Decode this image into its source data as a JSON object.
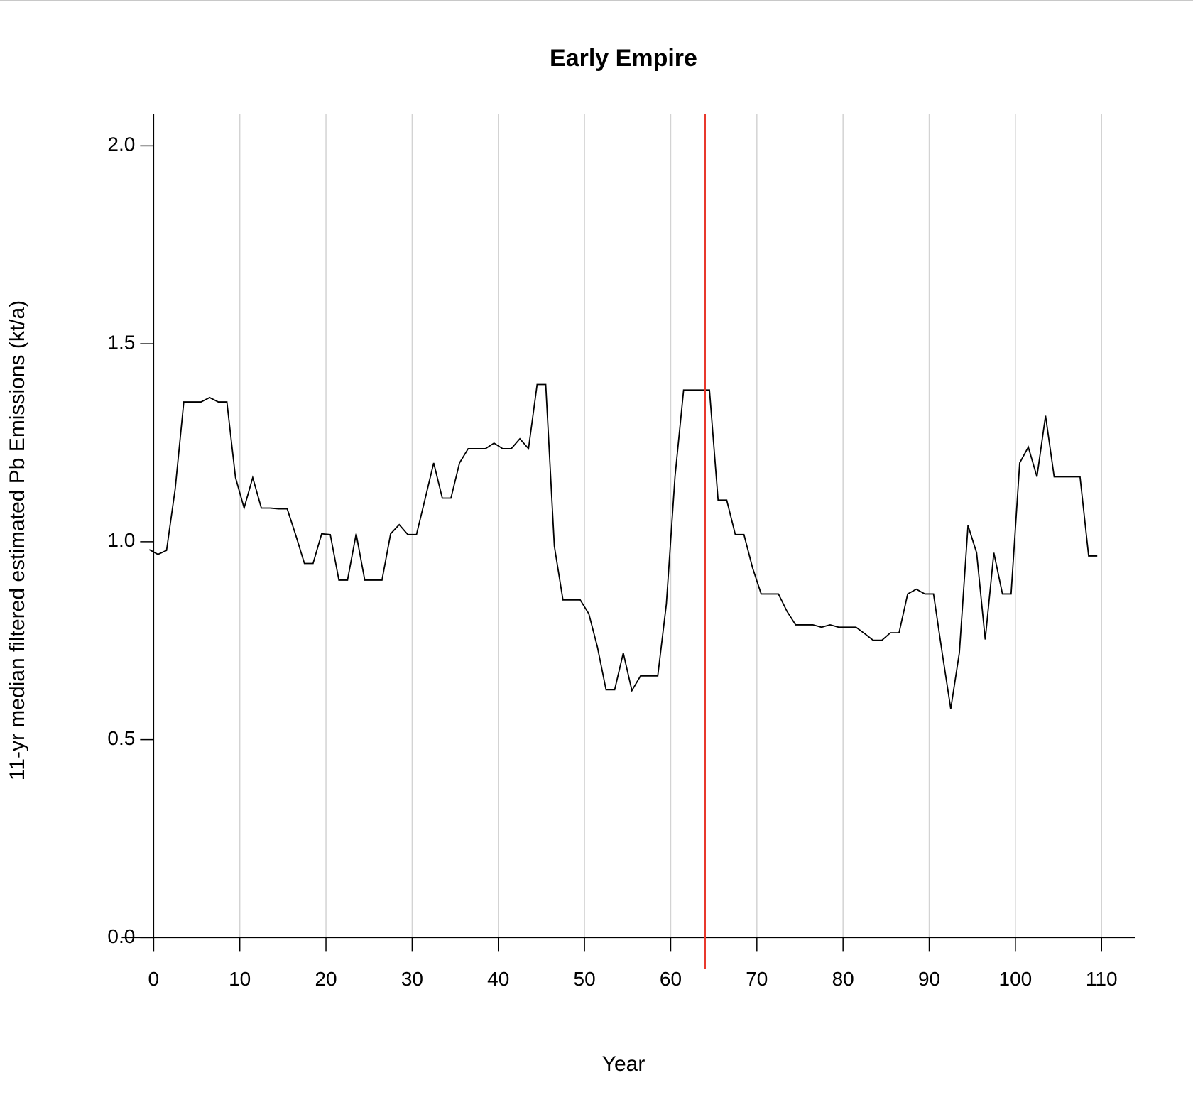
{
  "chart_data": {
    "type": "line",
    "title": "Early Empire",
    "x_label": "Year",
    "y_label": "11-yr median filtered estimated Pb Emissions (kt/a)",
    "x": [
      -0.5,
      0.5,
      1.5,
      2.5,
      3.5,
      4.5,
      5.5,
      6.5,
      7.5,
      8.5,
      9.5,
      10.5,
      11.5,
      12.5,
      13.5,
      14.5,
      15.5,
      16.5,
      17.5,
      18.5,
      19.5,
      20.5,
      21.5,
      22.5,
      23.5,
      24.5,
      25.5,
      26.5,
      27.5,
      28.5,
      29.5,
      30.5,
      31.5,
      32.5,
      33.5,
      34.5,
      35.5,
      36.5,
      37.5,
      38.5,
      39.5,
      40.5,
      41.5,
      42.5,
      43.5,
      44.5,
      45.5,
      46.5,
      47.5,
      48.5,
      49.5,
      50.5,
      51.5,
      52.5,
      53.5,
      54.5,
      55.5,
      56.5,
      57.5,
      58.5,
      59.5,
      60.5,
      61.5,
      62.5,
      63.5,
      64.5,
      65.5,
      66.5,
      67.5,
      68.5,
      69.5,
      70.5,
      71.5,
      72.5,
      73.5,
      74.5,
      75.5,
      76.5,
      77.5,
      78.5,
      79.5,
      80.5,
      81.5,
      82.5,
      83.5,
      84.5,
      85.5,
      86.5,
      87.5,
      88.5,
      89.5,
      90.5,
      91.5,
      92.5,
      93.5,
      94.5,
      95.5,
      96.5,
      97.5,
      98.5,
      99.5,
      100.5,
      101.5,
      102.5,
      103.5,
      104.5,
      105.5,
      106.5,
      107.5,
      108.5,
      109.5
    ],
    "series": [
      {
        "color": "#000000",
        "values": [
          0.98,
          0.968,
          0.978,
          1.133,
          1.353,
          1.353,
          1.353,
          1.364,
          1.353,
          1.353,
          1.162,
          1.085,
          1.162,
          1.085,
          1.085,
          1.083,
          1.083,
          1.016,
          0.945,
          0.945,
          1.02,
          1.018,
          0.903,
          0.903,
          1.02,
          0.903,
          0.903,
          0.903,
          1.02,
          1.043,
          1.018,
          1.018,
          1.108,
          1.199,
          1.11,
          1.11,
          1.199,
          1.235,
          1.235,
          1.235,
          1.249,
          1.235,
          1.235,
          1.26,
          1.235,
          1.397,
          1.397,
          0.989,
          0.853,
          0.853,
          0.853,
          0.818,
          0.734,
          0.626,
          0.626,
          0.719,
          0.624,
          0.661,
          0.661,
          0.661,
          0.843,
          1.164,
          1.383,
          1.383,
          1.383,
          1.383,
          1.105,
          1.105,
          1.018,
          1.018,
          0.934,
          0.868,
          0.868,
          0.868,
          0.824,
          0.79,
          0.79,
          0.79,
          0.784,
          0.79,
          0.784,
          0.784,
          0.784,
          0.768,
          0.751,
          0.751,
          0.77,
          0.77,
          0.868,
          0.88,
          0.868,
          0.868,
          0.72,
          0.578,
          0.72,
          1.041,
          0.972,
          0.753,
          0.972,
          0.868,
          0.868,
          1.199,
          1.239,
          1.164,
          1.318,
          1.164,
          1.164,
          1.164,
          1.164,
          0.964,
          0.964
        ]
      }
    ],
    "reference_line": {
      "x": 64,
      "color": "#e8382c"
    },
    "xlim": [
      -3.7,
      113.9
    ],
    "ylim": [
      -0.08,
      2.08
    ],
    "xticks": [
      0,
      10,
      20,
      30,
      40,
      50,
      60,
      70,
      80,
      90,
      100,
      110
    ],
    "yticks": [
      {
        "value": 0,
        "label": "0.0"
      },
      {
        "value": 0.5,
        "label": "0.5"
      },
      {
        "value": 1,
        "label": "1.0"
      },
      {
        "value": 1.5,
        "label": "1.5"
      },
      {
        "value": 2,
        "label": "2.0"
      }
    ],
    "grid": true,
    "grid_color": "#d3d3d3"
  }
}
